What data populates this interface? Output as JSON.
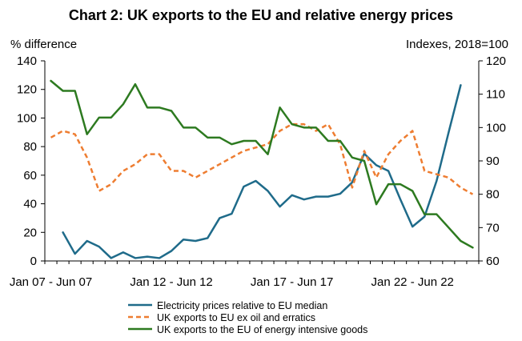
{
  "chart_data": {
    "type": "line",
    "title": "Chart 2: UK exports to the EU and relative energy prices",
    "left_axis_label": "% difference",
    "right_axis_label": "Indexes, 2018=100",
    "ylim_left": [
      0,
      140
    ],
    "yticks_left": [
      "0",
      "20",
      "40",
      "60",
      "80",
      "100",
      "120",
      "140"
    ],
    "ylim_right": [
      60,
      120
    ],
    "yticks_right": [
      "60",
      "70",
      "80",
      "90",
      "100",
      "110",
      "120"
    ],
    "categories": [
      "Jan 07 - Jun 07",
      "Jan 12 - Jun 12",
      "Jan 17 - Jun 17",
      "Jan 22 - Jun 22"
    ],
    "legend_placement": "bottom",
    "series": [
      {
        "name": "Electricity prices relative to EU median",
        "axis": "left",
        "color": "#1f6b8a",
        "style": "solid",
        "x": [
          1,
          2,
          3,
          4,
          5,
          6,
          7,
          8,
          9,
          10,
          11,
          12,
          13,
          14,
          15,
          16,
          17,
          18,
          19,
          20,
          21,
          22,
          23,
          24,
          25,
          26,
          27,
          28,
          29,
          30,
          31,
          32,
          33,
          34,
          35,
          36,
          37,
          38,
          39,
          40,
          41,
          42,
          43
        ],
        "values": [
          20,
          5,
          14,
          10,
          2,
          6,
          2,
          3,
          2,
          7,
          15,
          14,
          16,
          30,
          33,
          52,
          56,
          49,
          38,
          46,
          43,
          45,
          45,
          47,
          55,
          75,
          67,
          63,
          43,
          24,
          31,
          56,
          90,
          123,
          null,
          null,
          null,
          null,
          null,
          null,
          null,
          null,
          null
        ]
      },
      {
        "name": "UK exports to EU ex oil and erratics",
        "axis": "right",
        "color": "#ee7d31",
        "style": "dashed",
        "x": [
          0,
          1,
          2,
          3,
          4,
          5,
          6,
          7,
          8,
          9,
          10,
          11,
          12,
          13,
          14,
          15,
          16,
          17,
          18,
          19,
          20,
          21,
          22,
          23,
          24,
          25,
          26,
          27,
          28,
          29,
          30,
          31,
          32,
          33,
          34,
          35
        ],
        "values": [
          97,
          99,
          98,
          91,
          81,
          83,
          87,
          89,
          92,
          92,
          87,
          87,
          85,
          87,
          89,
          91,
          93,
          94,
          95,
          99,
          101,
          101,
          99,
          101,
          95,
          82,
          93,
          85,
          92,
          96,
          99,
          87,
          86,
          85,
          82,
          80
        ]
      },
      {
        "name": "UK exports to the EU of energy intensive goods",
        "axis": "right",
        "color": "#2d7a20",
        "style": "solid",
        "x": [
          0,
          1,
          2,
          3,
          4,
          5,
          6,
          7,
          8,
          9,
          10,
          11,
          12,
          13,
          14,
          15,
          16,
          17,
          18,
          19,
          20,
          21,
          22,
          23,
          24,
          25,
          26,
          27,
          28,
          29,
          30,
          31,
          32,
          33,
          34,
          35
        ],
        "values": [
          114,
          111,
          111,
          98,
          103,
          103,
          107,
          113,
          106,
          106,
          105,
          100,
          100,
          97,
          97,
          95,
          96,
          96,
          92,
          106,
          101,
          100,
          100,
          96,
          96,
          91,
          90,
          77,
          83,
          83,
          81,
          74,
          74,
          70,
          66,
          64
        ]
      }
    ]
  }
}
